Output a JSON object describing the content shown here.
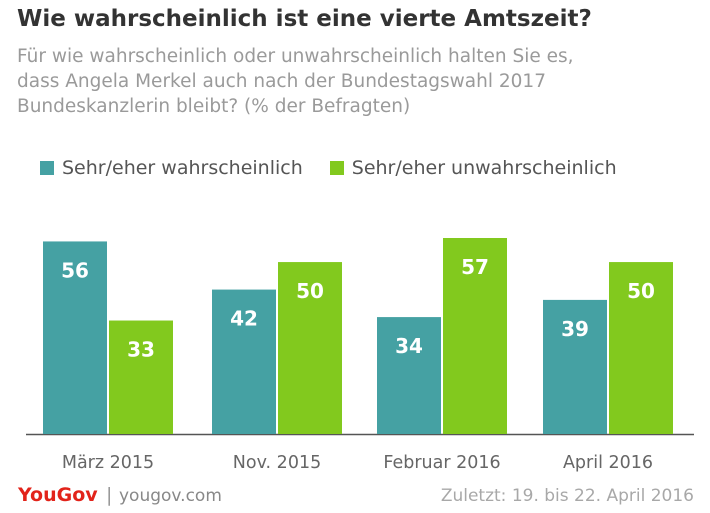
{
  "chart_data": {
    "type": "bar",
    "title": "Wie wahrscheinlich ist eine vierte Amtszeit?",
    "subtitle_lines": [
      "Für wie wahrscheinlich oder unwahrscheinlich halten Sie es,",
      "dass Angela Merkel auch nach der Bundestagswahl 2017",
      "Bundeskanzlerin bleibt? (% der Befragten)"
    ],
    "categories": [
      "März 2015",
      "Nov. 2015",
      "Februar 2016",
      "April 2016"
    ],
    "series": [
      {
        "name": "Sehr/eher wahrscheinlich",
        "values": [
          56,
          42,
          34,
          39
        ],
        "color": "#45a1a3"
      },
      {
        "name": "Sehr/eher unwahrscheinlich",
        "values": [
          33,
          50,
          57,
          50
        ],
        "color": "#82c91e"
      }
    ],
    "ylim": [
      0,
      57
    ],
    "grid": false,
    "legend_position": "top-left",
    "xlabel": "",
    "ylabel": ""
  },
  "footer": {
    "logo": "YouGov",
    "separator": "|",
    "url": "yougov.com",
    "date": "Zuletzt: 19. bis 22. April 2016"
  },
  "colors": {
    "brand": "#e2231a",
    "title": "#333333",
    "subtitle": "#9a9a9a"
  }
}
